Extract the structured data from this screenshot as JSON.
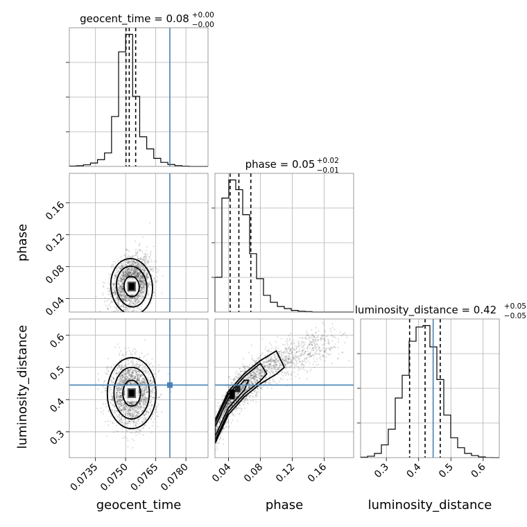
{
  "chart_data": {
    "type": "corner",
    "parameters": [
      "geocent_time",
      "phase",
      "luminosity_distance"
    ],
    "truth_color": "#4682b4",
    "truths": {
      "geocent_time": 0.0772,
      "phase": null,
      "luminosity_distance": 0.445
    },
    "axes": {
      "geocent_time": {
        "range": [
          0.0722,
          0.0791
        ],
        "ticks": [
          0.0735,
          0.075,
          0.0765,
          0.078
        ],
        "tick_labels": [
          "0.0735",
          "0.0750",
          "0.0765",
          "0.0780"
        ]
      },
      "phase": {
        "range": [
          0.023,
          0.197
        ],
        "ticks": [
          0.04,
          0.08,
          0.12,
          0.16
        ],
        "tick_labels": [
          "0.04",
          "0.08",
          "0.12",
          "0.16"
        ]
      },
      "luminosity_distance": {
        "range": [
          0.22,
          0.65
        ],
        "ticks": [
          0.3,
          0.4,
          0.5,
          0.6
        ],
        "tick_labels": [
          "0.3",
          "0.4",
          "0.5",
          "0.6"
        ]
      }
    },
    "titles": {
      "geocent_time": {
        "text": "geocent_time = 0.08",
        "sup": "+0.00",
        "sub": "−0.00"
      },
      "phase": {
        "text": "phase = 0.05",
        "sup": "+0.02",
        "sub": "−0.01"
      },
      "luminosity_distance": {
        "text": "luminosity_distance = 0.42",
        "sup": "+0.05",
        "sub": "−0.05"
      }
    },
    "histograms": {
      "geocent_time": {
        "edges": [
          0.0722,
          0.07255,
          0.0729,
          0.07325,
          0.0736,
          0.07395,
          0.0743,
          0.07465,
          0.075,
          0.07535,
          0.0757,
          0.07605,
          0.0764,
          0.07675,
          0.0771,
          0.07745,
          0.0778,
          0.07815,
          0.0785,
          0.07885,
          0.0791
        ],
        "counts": [
          0.3,
          0.5,
          1.2,
          2.5,
          5.0,
          10.0,
          37.0,
          85.0,
          98.0,
          52.0,
          22.0,
          13.0,
          6.0,
          3.0,
          1.4,
          0.6,
          0.2,
          0,
          0,
          0
        ],
        "quantiles": [
          0.07502,
          0.07518,
          0.0755
        ]
      },
      "phase": {
        "edges": [
          0.023,
          0.0317,
          0.0404,
          0.0491,
          0.0578,
          0.0665,
          0.0752,
          0.0839,
          0.0926,
          0.1013,
          0.11,
          0.1187,
          0.1274,
          0.1361,
          0.1448,
          0.1535,
          0.1622,
          0.1709,
          0.1796,
          0.1883,
          0.197
        ],
        "counts": [
          25.0,
          82.0,
          95.0,
          88.0,
          70.0,
          42.0,
          24.0,
          12.0,
          7.0,
          4.0,
          2.5,
          1.2,
          0.6,
          0.3,
          0,
          0,
          0,
          0,
          0,
          0
        ],
        "quantiles": [
          0.042,
          0.053,
          0.068
        ]
      },
      "luminosity_distance": {
        "edges": [
          0.22,
          0.2415,
          0.263,
          0.2845,
          0.306,
          0.3275,
          0.349,
          0.3705,
          0.392,
          0.4135,
          0.435,
          0.4565,
          0.478,
          0.4995,
          0.521,
          0.5425,
          0.564,
          0.5855,
          0.607,
          0.6285,
          0.65
        ],
        "counts": [
          0.3,
          1.0,
          3.0,
          9.0,
          20.0,
          42.0,
          58.0,
          82.0,
          92.0,
          93.0,
          78.0,
          55.0,
          30.0,
          14.0,
          7.0,
          3.0,
          1.5,
          0.5,
          0.1,
          0
        ],
        "quantiles": [
          0.372,
          0.42,
          0.467
        ]
      }
    },
    "joint": {
      "phase_vs_geocent_time": {
        "mean": [
          0.0753,
          0.055
        ],
        "sd": [
          0.00047,
          0.016
        ],
        "corr": 0.3,
        "contours_sigma": [
          0.8,
          1.6,
          2.2
        ],
        "truth": [
          0.0772,
          null
        ]
      },
      "luminosity_distance_vs_geocent_time": {
        "mean": [
          0.0753,
          0.42
        ],
        "sd": [
          0.00055,
          0.05
        ],
        "corr": 0.0,
        "contours_sigma": [
          0.8,
          1.6,
          2.2
        ],
        "truth": [
          0.0772,
          0.445
        ]
      },
      "luminosity_distance_vs_phase": {
        "ridge": [
          [
            0.023,
            0.3
          ],
          [
            0.04,
            0.39
          ],
          [
            0.06,
            0.445
          ],
          [
            0.08,
            0.485
          ],
          [
            0.1,
            0.515
          ],
          [
            0.13,
            0.545
          ],
          [
            0.17,
            0.57
          ]
        ],
        "truth": [
          null,
          0.445
        ]
      }
    },
    "legend": null
  }
}
